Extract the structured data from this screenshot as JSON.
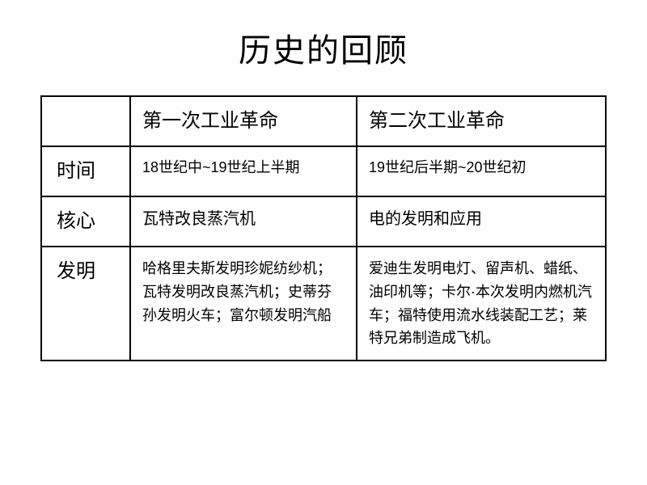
{
  "title": "历史的回顾",
  "table": {
    "header": {
      "blank": "",
      "col1": "第一次工业革命",
      "col2": "第二次工业革命"
    },
    "rows": {
      "time": {
        "label": "时间",
        "col1": "18世纪中~19世纪上半期",
        "col2": "19世纪后半期~20世纪初"
      },
      "core": {
        "label": "核心",
        "col1": "瓦特改良蒸汽机",
        "col2": "电的发明和应用"
      },
      "invention": {
        "label": "发明",
        "col1": "哈格里夫斯发明珍妮纺纱机；瓦特发明改良蒸汽机；史蒂芬孙发明火车；富尔顿发明汽船",
        "col2": "爱迪生发明电灯、留声机、蜡纸、油印机等；卡尔·本次发明内燃机汽车；福特使用流水线装配工艺；莱特兄弟制造成飞机。"
      }
    }
  },
  "colors": {
    "background": "#ffffff",
    "text": "#000000",
    "border": "#000000"
  }
}
